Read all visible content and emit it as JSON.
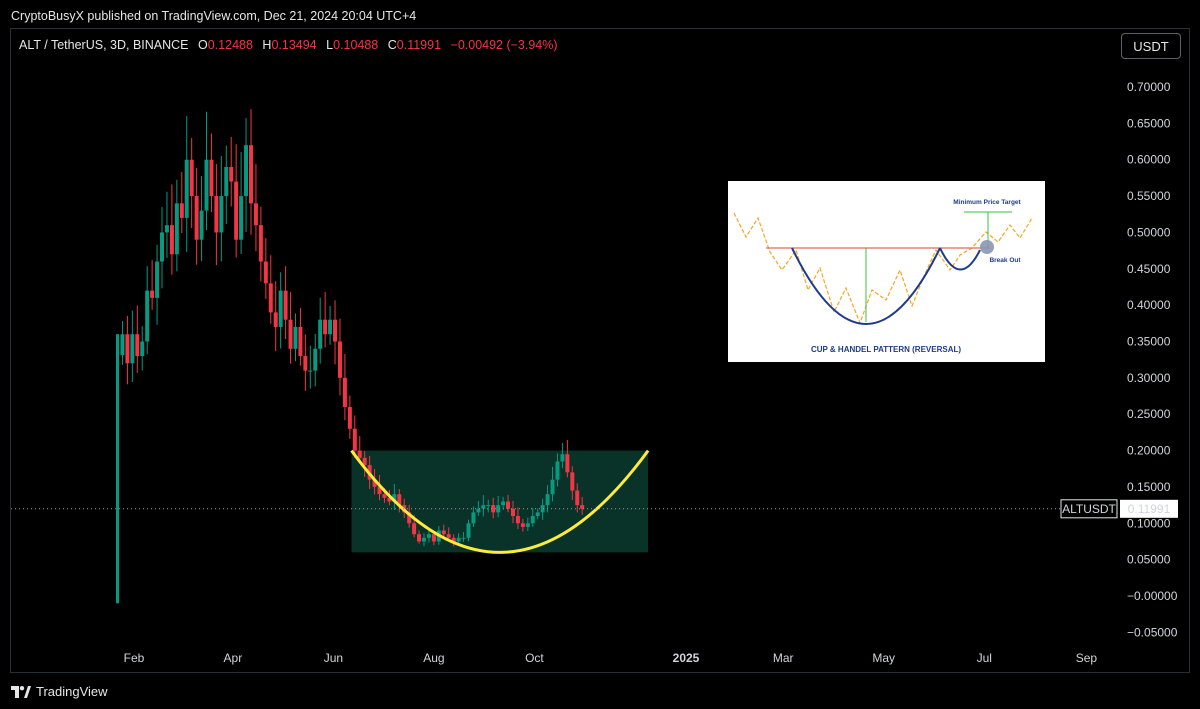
{
  "publish_line": "CryptoBusyX published on TradingView.com, Dec 21, 2024 20:04 UTC+4",
  "header": {
    "symbol": "ALT / TetherUS, 3D, BINANCE",
    "o_label": "O",
    "o_value": "0.12488",
    "h_label": "H",
    "h_value": "0.13494",
    "l_label": "L",
    "l_value": "0.10488",
    "c_label": "C",
    "c_value": "0.11991",
    "change": "−0.00492 (−3.94%)"
  },
  "currency_button": "USDT",
  "price_tag": {
    "symbol": "ALTUSDT",
    "value": "0.11991"
  },
  "footer_logo": "TradingView",
  "colors": {
    "up": "#089981",
    "down": "#f23645",
    "cup": "#ffeb3b",
    "zone": "#0b3b30",
    "background": "#000000"
  },
  "chart_data": {
    "type": "candlestick",
    "y_ticks": [
      "0.70000",
      "0.65000",
      "0.60000",
      "0.55000",
      "0.50000",
      "0.45000",
      "0.40000",
      "0.35000",
      "0.30000",
      "0.25000",
      "0.20000",
      "0.15000",
      "0.10000",
      "0.05000",
      "−0.00000",
      "−0.05000"
    ],
    "ylim": [
      -0.06,
      0.72
    ],
    "x_ticks": [
      "Feb",
      "Apr",
      "Jun",
      "Aug",
      "Oct",
      "2025",
      "Mar",
      "May",
      "Jul",
      "Sep"
    ],
    "last_price": 0.11991,
    "candles_start": "2024-01-25",
    "candle_interval_days": 3,
    "closes": [
      0.36,
      0.32,
      0.36,
      0.33,
      0.35,
      0.42,
      0.41,
      0.46,
      0.5,
      0.51,
      0.47,
      0.54,
      0.52,
      0.6,
      0.55,
      0.49,
      0.53,
      0.6,
      0.55,
      0.5,
      0.55,
      0.59,
      0.57,
      0.49,
      0.55,
      0.62,
      0.54,
      0.51,
      0.46,
      0.43,
      0.39,
      0.37,
      0.42,
      0.38,
      0.34,
      0.37,
      0.33,
      0.31,
      0.31,
      0.34,
      0.38,
      0.36,
      0.38,
      0.35,
      0.3,
      0.26,
      0.23,
      0.2,
      0.19,
      0.18,
      0.16,
      0.15,
      0.14,
      0.135,
      0.13,
      0.14,
      0.125,
      0.115,
      0.1,
      0.085,
      0.075,
      0.08,
      0.085,
      0.075,
      0.09,
      0.085,
      0.08,
      0.075,
      0.08,
      0.08,
      0.1,
      0.115,
      0.12,
      0.125,
      0.125,
      0.115,
      0.125,
      0.13,
      0.12,
      0.11,
      0.1,
      0.095,
      0.1,
      0.11,
      0.115,
      0.125,
      0.14,
      0.16,
      0.185,
      0.195,
      0.17,
      0.145,
      0.125,
      0.11991
    ],
    "cup_zone": {
      "top": 0.2,
      "from": "2024-06-12",
      "to": "2024-12-09"
    },
    "cup_curve": {
      "from": "2024-06-12",
      "to": "2024-12-09",
      "left_value": 0.2,
      "bottom_value": 0.06,
      "right_value": 0.2
    },
    "inset": {
      "title": "CUP & HANDEL PATTERN (REVERSAL)",
      "target_label": "Minimum Price Target",
      "breakout_label": "Break Out"
    }
  }
}
